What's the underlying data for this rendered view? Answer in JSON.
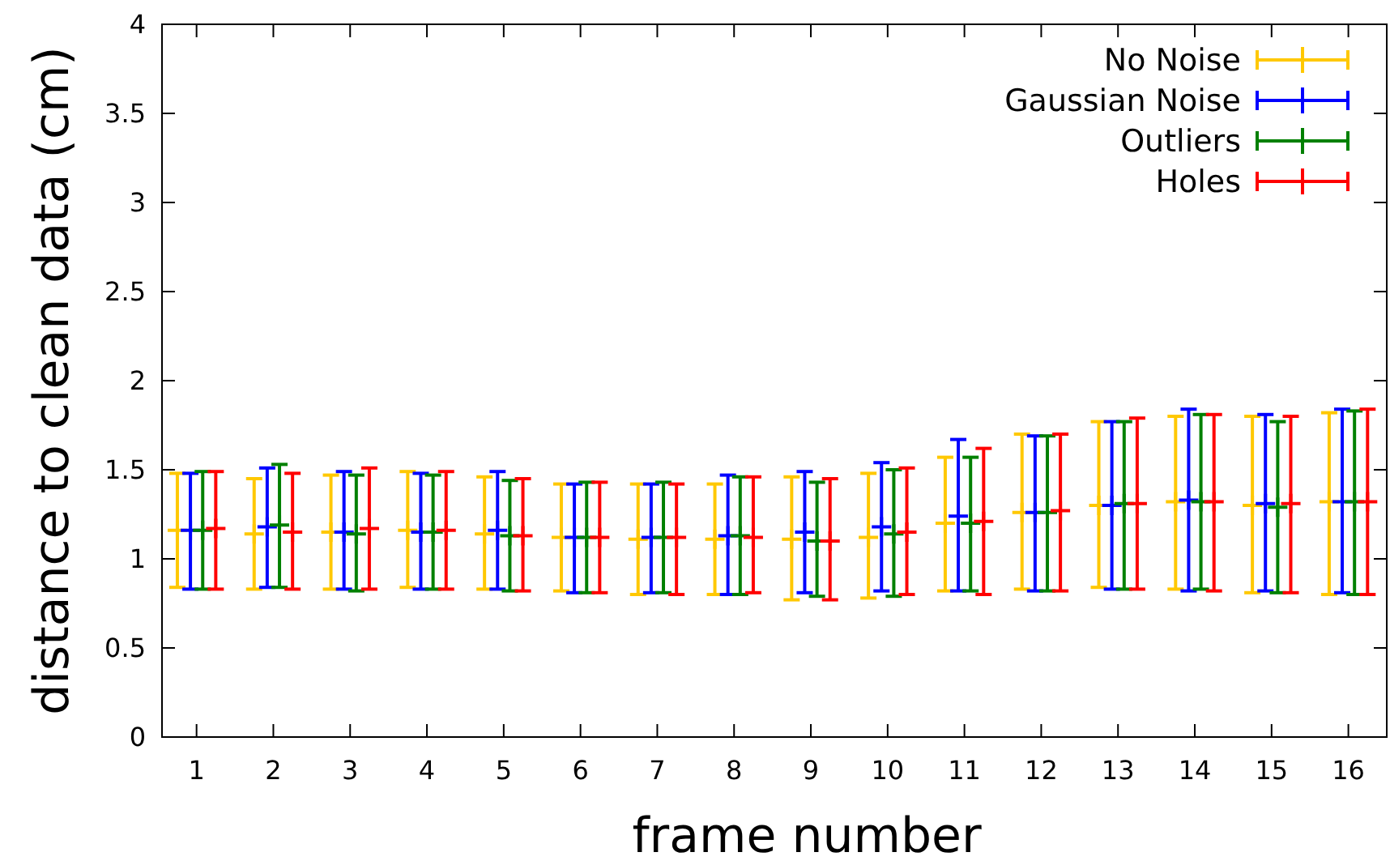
{
  "chart_data": {
    "type": "scatter",
    "marker": "cross",
    "xlabel": "frame number",
    "ylabel": "distance to clean data (cm)",
    "xlim": [
      0.55,
      16.5
    ],
    "xticks": [
      1,
      2,
      3,
      4,
      5,
      6,
      7,
      8,
      9,
      10,
      11,
      12,
      13,
      14,
      15,
      16
    ],
    "ylim": [
      0,
      4
    ],
    "yticks": [
      0,
      0.5,
      1,
      1.5,
      2,
      2.5,
      3,
      3.5,
      4
    ],
    "grid": false,
    "legend": "top right",
    "series": [
      {
        "name": "No Noise",
        "color": "#ffc800",
        "x": [
          0.75,
          1.75,
          2.75,
          3.75,
          4.75,
          5.75,
          6.75,
          7.75,
          8.75,
          9.75,
          10.75,
          11.75,
          12.75,
          13.75,
          14.75,
          15.75
        ],
        "values": [
          1.16,
          1.14,
          1.15,
          1.16,
          1.14,
          1.12,
          1.11,
          1.11,
          1.11,
          1.12,
          1.2,
          1.26,
          1.3,
          1.32,
          1.3,
          1.32
        ],
        "errors": [
          [
            0.84,
            1.48
          ],
          [
            0.83,
            1.45
          ],
          [
            0.83,
            1.47
          ],
          [
            0.84,
            1.49
          ],
          [
            0.83,
            1.46
          ],
          [
            0.82,
            1.42
          ],
          [
            0.8,
            1.42
          ],
          [
            0.8,
            1.42
          ],
          [
            0.77,
            1.46
          ],
          [
            0.78,
            1.48
          ],
          [
            0.82,
            1.57
          ],
          [
            0.83,
            1.7
          ],
          [
            0.84,
            1.77
          ],
          [
            0.83,
            1.8
          ],
          [
            0.81,
            1.8
          ],
          [
            0.8,
            1.82
          ]
        ]
      },
      {
        "name": "Gaussian Noise",
        "color": "#0000ff",
        "x": [
          0.92,
          1.92,
          2.92,
          3.92,
          4.92,
          5.92,
          6.92,
          7.92,
          8.92,
          9.92,
          10.92,
          11.92,
          12.92,
          13.92,
          14.92,
          15.92
        ],
        "values": [
          1.16,
          1.18,
          1.15,
          1.15,
          1.16,
          1.12,
          1.12,
          1.13,
          1.15,
          1.18,
          1.24,
          1.26,
          1.3,
          1.33,
          1.31,
          1.32
        ],
        "errors": [
          [
            0.83,
            1.48
          ],
          [
            0.84,
            1.51
          ],
          [
            0.83,
            1.49
          ],
          [
            0.83,
            1.48
          ],
          [
            0.83,
            1.49
          ],
          [
            0.81,
            1.42
          ],
          [
            0.81,
            1.42
          ],
          [
            0.8,
            1.47
          ],
          [
            0.81,
            1.49
          ],
          [
            0.82,
            1.54
          ],
          [
            0.82,
            1.67
          ],
          [
            0.82,
            1.69
          ],
          [
            0.83,
            1.77
          ],
          [
            0.82,
            1.84
          ],
          [
            0.82,
            1.81
          ],
          [
            0.81,
            1.84
          ]
        ]
      },
      {
        "name": "Outliers",
        "color": "#008000",
        "x": [
          1.08,
          2.08,
          3.08,
          4.08,
          5.08,
          6.08,
          7.08,
          8.08,
          9.08,
          10.08,
          11.08,
          12.08,
          13.08,
          14.08,
          15.08,
          16.08
        ],
        "values": [
          1.16,
          1.19,
          1.14,
          1.15,
          1.13,
          1.12,
          1.12,
          1.13,
          1.1,
          1.14,
          1.2,
          1.26,
          1.31,
          1.32,
          1.29,
          1.32
        ],
        "errors": [
          [
            0.83,
            1.49
          ],
          [
            0.84,
            1.53
          ],
          [
            0.82,
            1.47
          ],
          [
            0.83,
            1.47
          ],
          [
            0.82,
            1.44
          ],
          [
            0.81,
            1.43
          ],
          [
            0.81,
            1.43
          ],
          [
            0.8,
            1.46
          ],
          [
            0.79,
            1.43
          ],
          [
            0.79,
            1.5
          ],
          [
            0.82,
            1.57
          ],
          [
            0.82,
            1.69
          ],
          [
            0.83,
            1.77
          ],
          [
            0.83,
            1.81
          ],
          [
            0.81,
            1.77
          ],
          [
            0.8,
            1.83
          ]
        ]
      },
      {
        "name": "Holes",
        "color": "#ff0000",
        "x": [
          1.25,
          2.25,
          3.25,
          4.25,
          5.25,
          6.25,
          7.25,
          8.25,
          9.25,
          10.25,
          11.25,
          12.25,
          13.25,
          14.25,
          15.25,
          16.25
        ],
        "values": [
          1.17,
          1.15,
          1.17,
          1.16,
          1.13,
          1.12,
          1.12,
          1.12,
          1.1,
          1.15,
          1.21,
          1.27,
          1.31,
          1.32,
          1.31,
          1.32
        ],
        "errors": [
          [
            0.83,
            1.49
          ],
          [
            0.83,
            1.48
          ],
          [
            0.83,
            1.51
          ],
          [
            0.83,
            1.49
          ],
          [
            0.82,
            1.45
          ],
          [
            0.81,
            1.43
          ],
          [
            0.8,
            1.42
          ],
          [
            0.81,
            1.46
          ],
          [
            0.77,
            1.45
          ],
          [
            0.8,
            1.51
          ],
          [
            0.8,
            1.62
          ],
          [
            0.82,
            1.7
          ],
          [
            0.83,
            1.79
          ],
          [
            0.82,
            1.81
          ],
          [
            0.81,
            1.8
          ],
          [
            0.8,
            1.84
          ]
        ]
      }
    ]
  }
}
